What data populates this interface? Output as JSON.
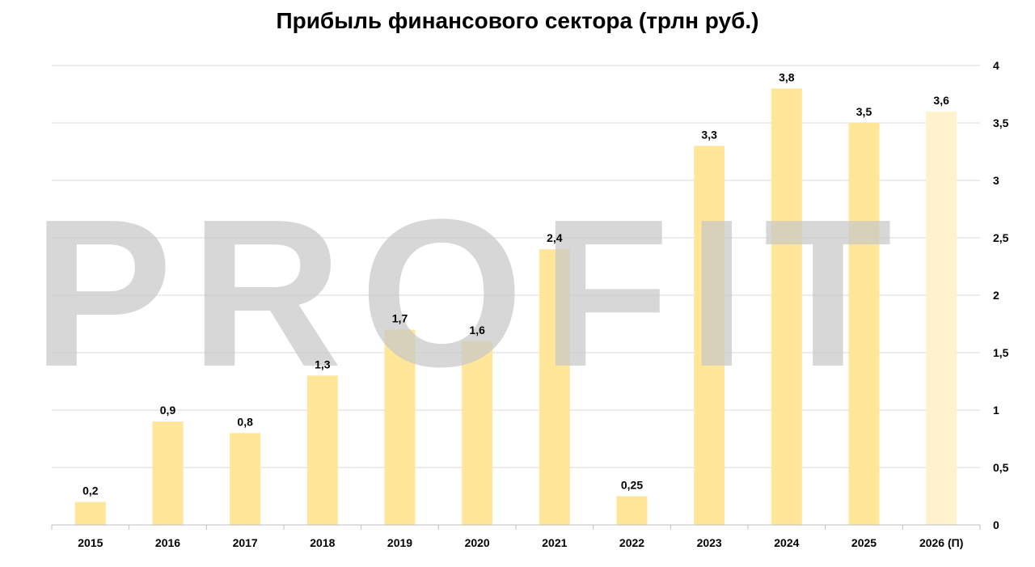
{
  "chart_data": {
    "type": "bar",
    "title": "Прибыль финансового сектора (трлн руб.)",
    "categories": [
      "2015",
      "2016",
      "2017",
      "2018",
      "2019",
      "2020",
      "2021",
      "2022",
      "2023",
      "2024",
      "2025",
      "2026 (П)"
    ],
    "values": [
      0.2,
      0.9,
      0.8,
      1.3,
      1.7,
      1.6,
      2.4,
      0.25,
      3.3,
      3.8,
      3.5,
      3.6
    ],
    "data_labels": [
      "0,2",
      "0,9",
      "0,8",
      "1,3",
      "1,7",
      "1,6",
      "2,4",
      "0,25",
      "3,3",
      "3,8",
      "3,5",
      "3,6"
    ],
    "forecast_flags": [
      false,
      false,
      false,
      false,
      false,
      false,
      false,
      false,
      false,
      false,
      false,
      true
    ],
    "ylim": [
      0,
      4
    ],
    "y_ticks": [
      0,
      0.5,
      1,
      1.5,
      2,
      2.5,
      3,
      3.5,
      4
    ],
    "y_tick_labels": [
      "0",
      "0,5",
      "1",
      "1,5",
      "2",
      "2,5",
      "3",
      "3,5",
      "4"
    ],
    "y_axis_side": "right",
    "grid": true,
    "xlabel": "",
    "ylabel": "",
    "colors": {
      "bar": "#ffe699",
      "bar_forecast": "#fff2cc",
      "grid": "#d9d9d9",
      "axis": "#bfbfbf"
    },
    "watermark": "PROFIT"
  }
}
